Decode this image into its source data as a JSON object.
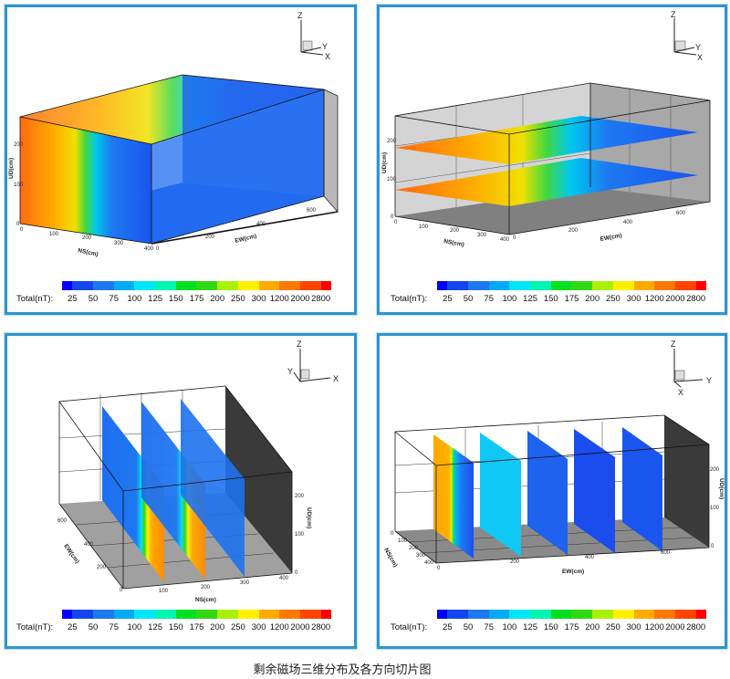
{
  "caption": "剩余磁场三维分布及各方向切片图",
  "colorbar": {
    "title": "Total(nT):",
    "labels": [
      "25",
      "50",
      "75",
      "100",
      "125",
      "150",
      "175",
      "200",
      "250",
      "300",
      "1200",
      "2000",
      "2800"
    ],
    "colors": [
      "#0000f8",
      "#1446ee",
      "#1e78f0",
      "#00aaf5",
      "#00e6f8",
      "#00f5b0",
      "#00e020",
      "#30d814",
      "#aaf00a",
      "#fff000",
      "#ffaa00",
      "#ff7800",
      "#ff4400",
      "#ff0000"
    ]
  },
  "triad": {
    "z": "Z",
    "y": "Y",
    "x": "X"
  },
  "axes": {
    "ud": "UD(cm)",
    "ns": "NS(cm)",
    "ew": "EW(cm)",
    "ud_ticks": [
      "0",
      "100",
      "200"
    ],
    "ns_ticks": [
      "0",
      "100",
      "200",
      "300",
      "400"
    ],
    "ew_ticks": [
      "0",
      "200",
      "400",
      "600"
    ]
  },
  "chart_data": [
    {
      "type": "heatmap",
      "view": "3D volume contour",
      "xlabel": "NS(cm)",
      "ylabel": "EW(cm)",
      "zlabel": "UD(cm)",
      "xlim": [
        0,
        400
      ],
      "ylim": [
        0,
        700
      ],
      "zlim": [
        0,
        250
      ],
      "colorbar_label": "Total(nT)",
      "colorbar_levels": [
        25,
        50,
        75,
        100,
        125,
        150,
        175,
        200,
        250,
        300,
        1200,
        2000,
        2800
      ]
    },
    {
      "type": "heatmap",
      "view": "horizontal slices",
      "slices_UD_cm": [
        80,
        180
      ],
      "xlabel": "NS(cm)",
      "ylabel": "EW(cm)",
      "zlabel": "UD(cm)",
      "colorbar_label": "Total(nT)",
      "colorbar_levels": [
        25,
        50,
        75,
        100,
        125,
        150,
        175,
        200,
        250,
        300,
        1200,
        2000,
        2800
      ]
    },
    {
      "type": "heatmap",
      "view": "NS-direction slices",
      "slices_NS_cm": [
        100,
        200,
        300
      ],
      "xlabel": "NS(cm)",
      "ylabel": "EW(cm)",
      "zlabel": "UD(cm)",
      "colorbar_label": "Total(nT)",
      "colorbar_levels": [
        25,
        50,
        75,
        100,
        125,
        150,
        175,
        200,
        250,
        300,
        1200,
        2000,
        2800
      ]
    },
    {
      "type": "heatmap",
      "view": "EW-direction slices",
      "slice_count": 5,
      "xlabel": "EW(cm)",
      "ylabel": "NS(cm)",
      "zlabel": "UD(cm)",
      "colorbar_label": "Total(nT)",
      "colorbar_levels": [
        25,
        50,
        75,
        100,
        125,
        150,
        175,
        200,
        250,
        300,
        1200,
        2000,
        2800
      ]
    }
  ]
}
